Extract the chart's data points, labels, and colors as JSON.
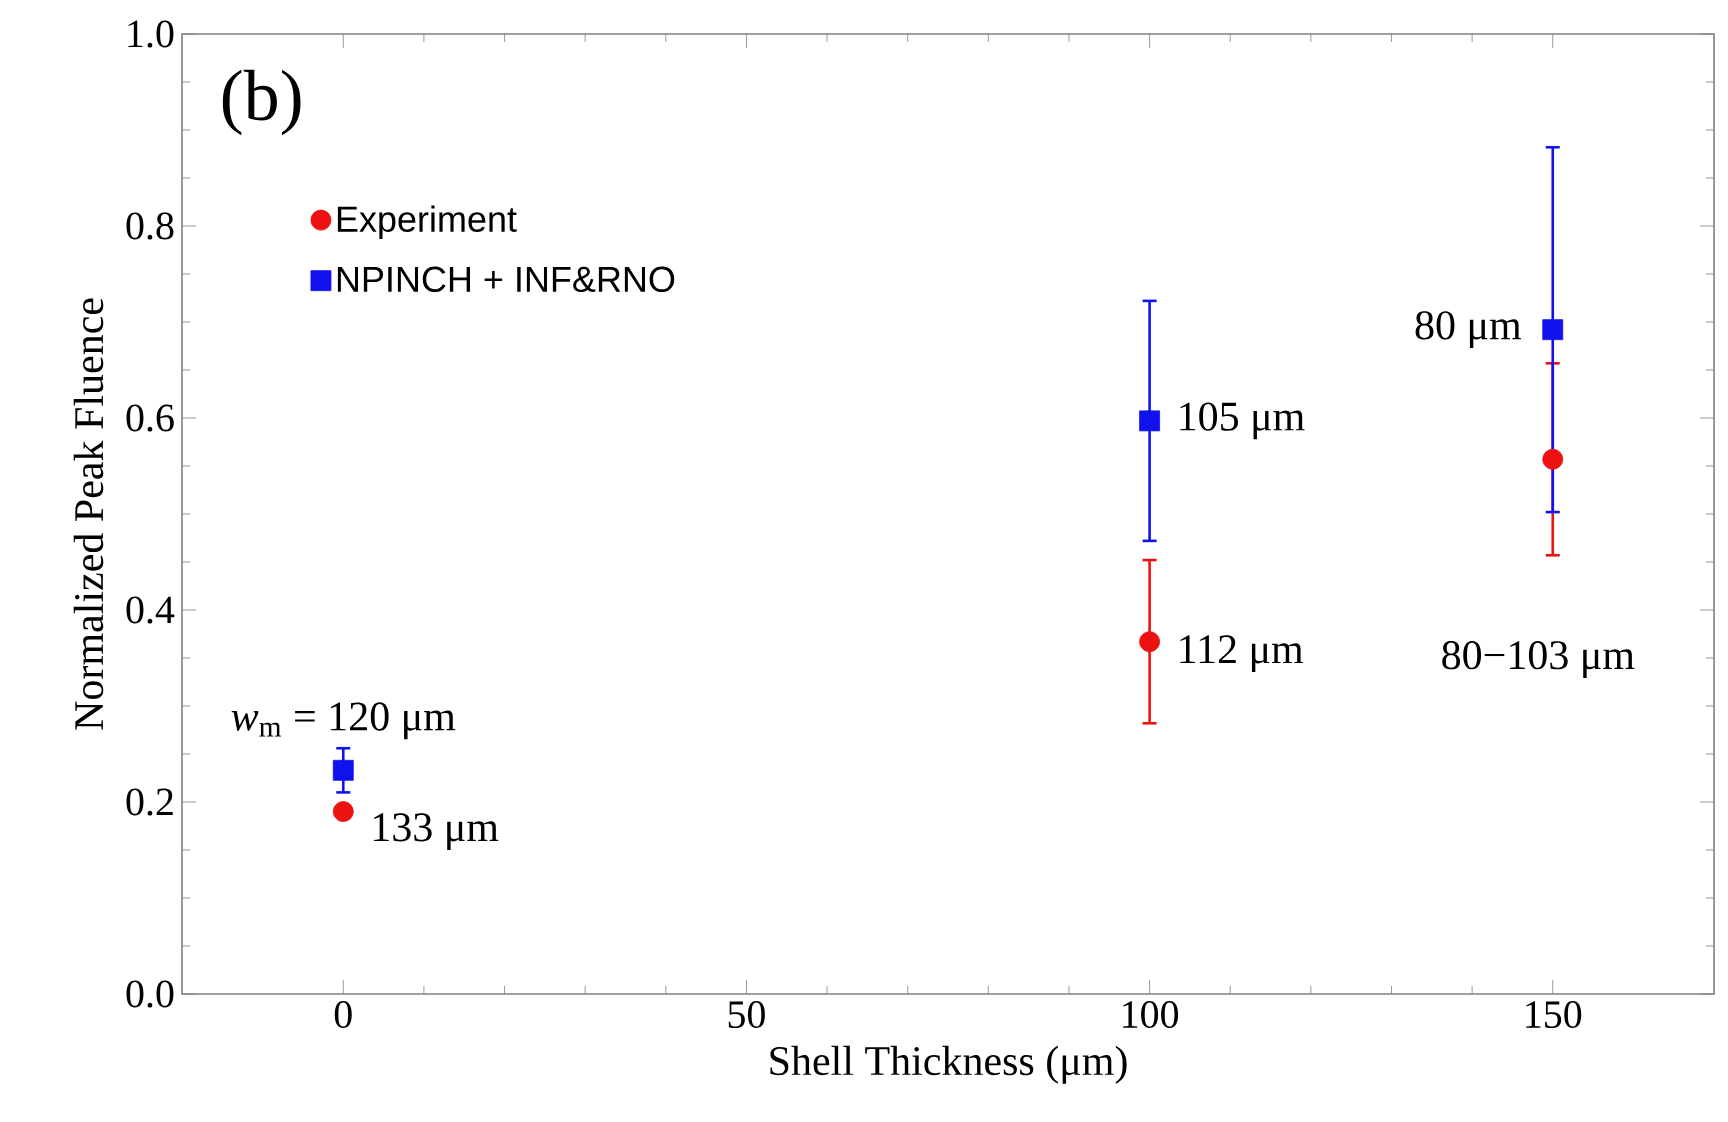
{
  "chart_data": {
    "type": "scatter",
    "xlabel": "Shell Thickness (μm)",
    "ylabel": "Normalized Peak Fluence",
    "x": [
      0,
      100,
      150
    ],
    "series": [
      {
        "name": "Experiment",
        "color": "#ee1111",
        "marker": "circle",
        "values": [
          0.19,
          0.367,
          0.557
        ],
        "errors": [
          null,
          0.085,
          0.1
        ]
      },
      {
        "name": "NPINCH + INF&RNO",
        "color": "#1111ee",
        "marker": "square",
        "values": [
          0.233,
          0.597,
          0.692
        ],
        "errors": [
          0.023,
          0.125,
          0.19
        ]
      }
    ],
    "xlim": [
      -20,
      170
    ],
    "xticks": [
      0,
      50,
      100,
      150
    ],
    "ylim": [
      0,
      1
    ],
    "yticks": [
      {
        "value": 0,
        "label": "0.0"
      },
      0.2,
      0.4,
      0.6,
      0.8,
      {
        "value": 1,
        "label": "1.0"
      }
    ],
    "grid": false,
    "legend": "top left",
    "annotations": [
      "(b)",
      {
        "text": "*w*$_{m}$ = 120 μm",
        "x": 0,
        "y": 0.233
      },
      {
        "text": "133 μm",
        "x": 0,
        "y": 0.19
      },
      {
        "text": "105 μm",
        "x": 100,
        "y": 0.597
      },
      {
        "text": "112 μm",
        "x": 100,
        "y": 0.367
      },
      {
        "text": "80 μm",
        "x": 150,
        "y": 0.692
      },
      "80−103 μm"
    ]
  }
}
